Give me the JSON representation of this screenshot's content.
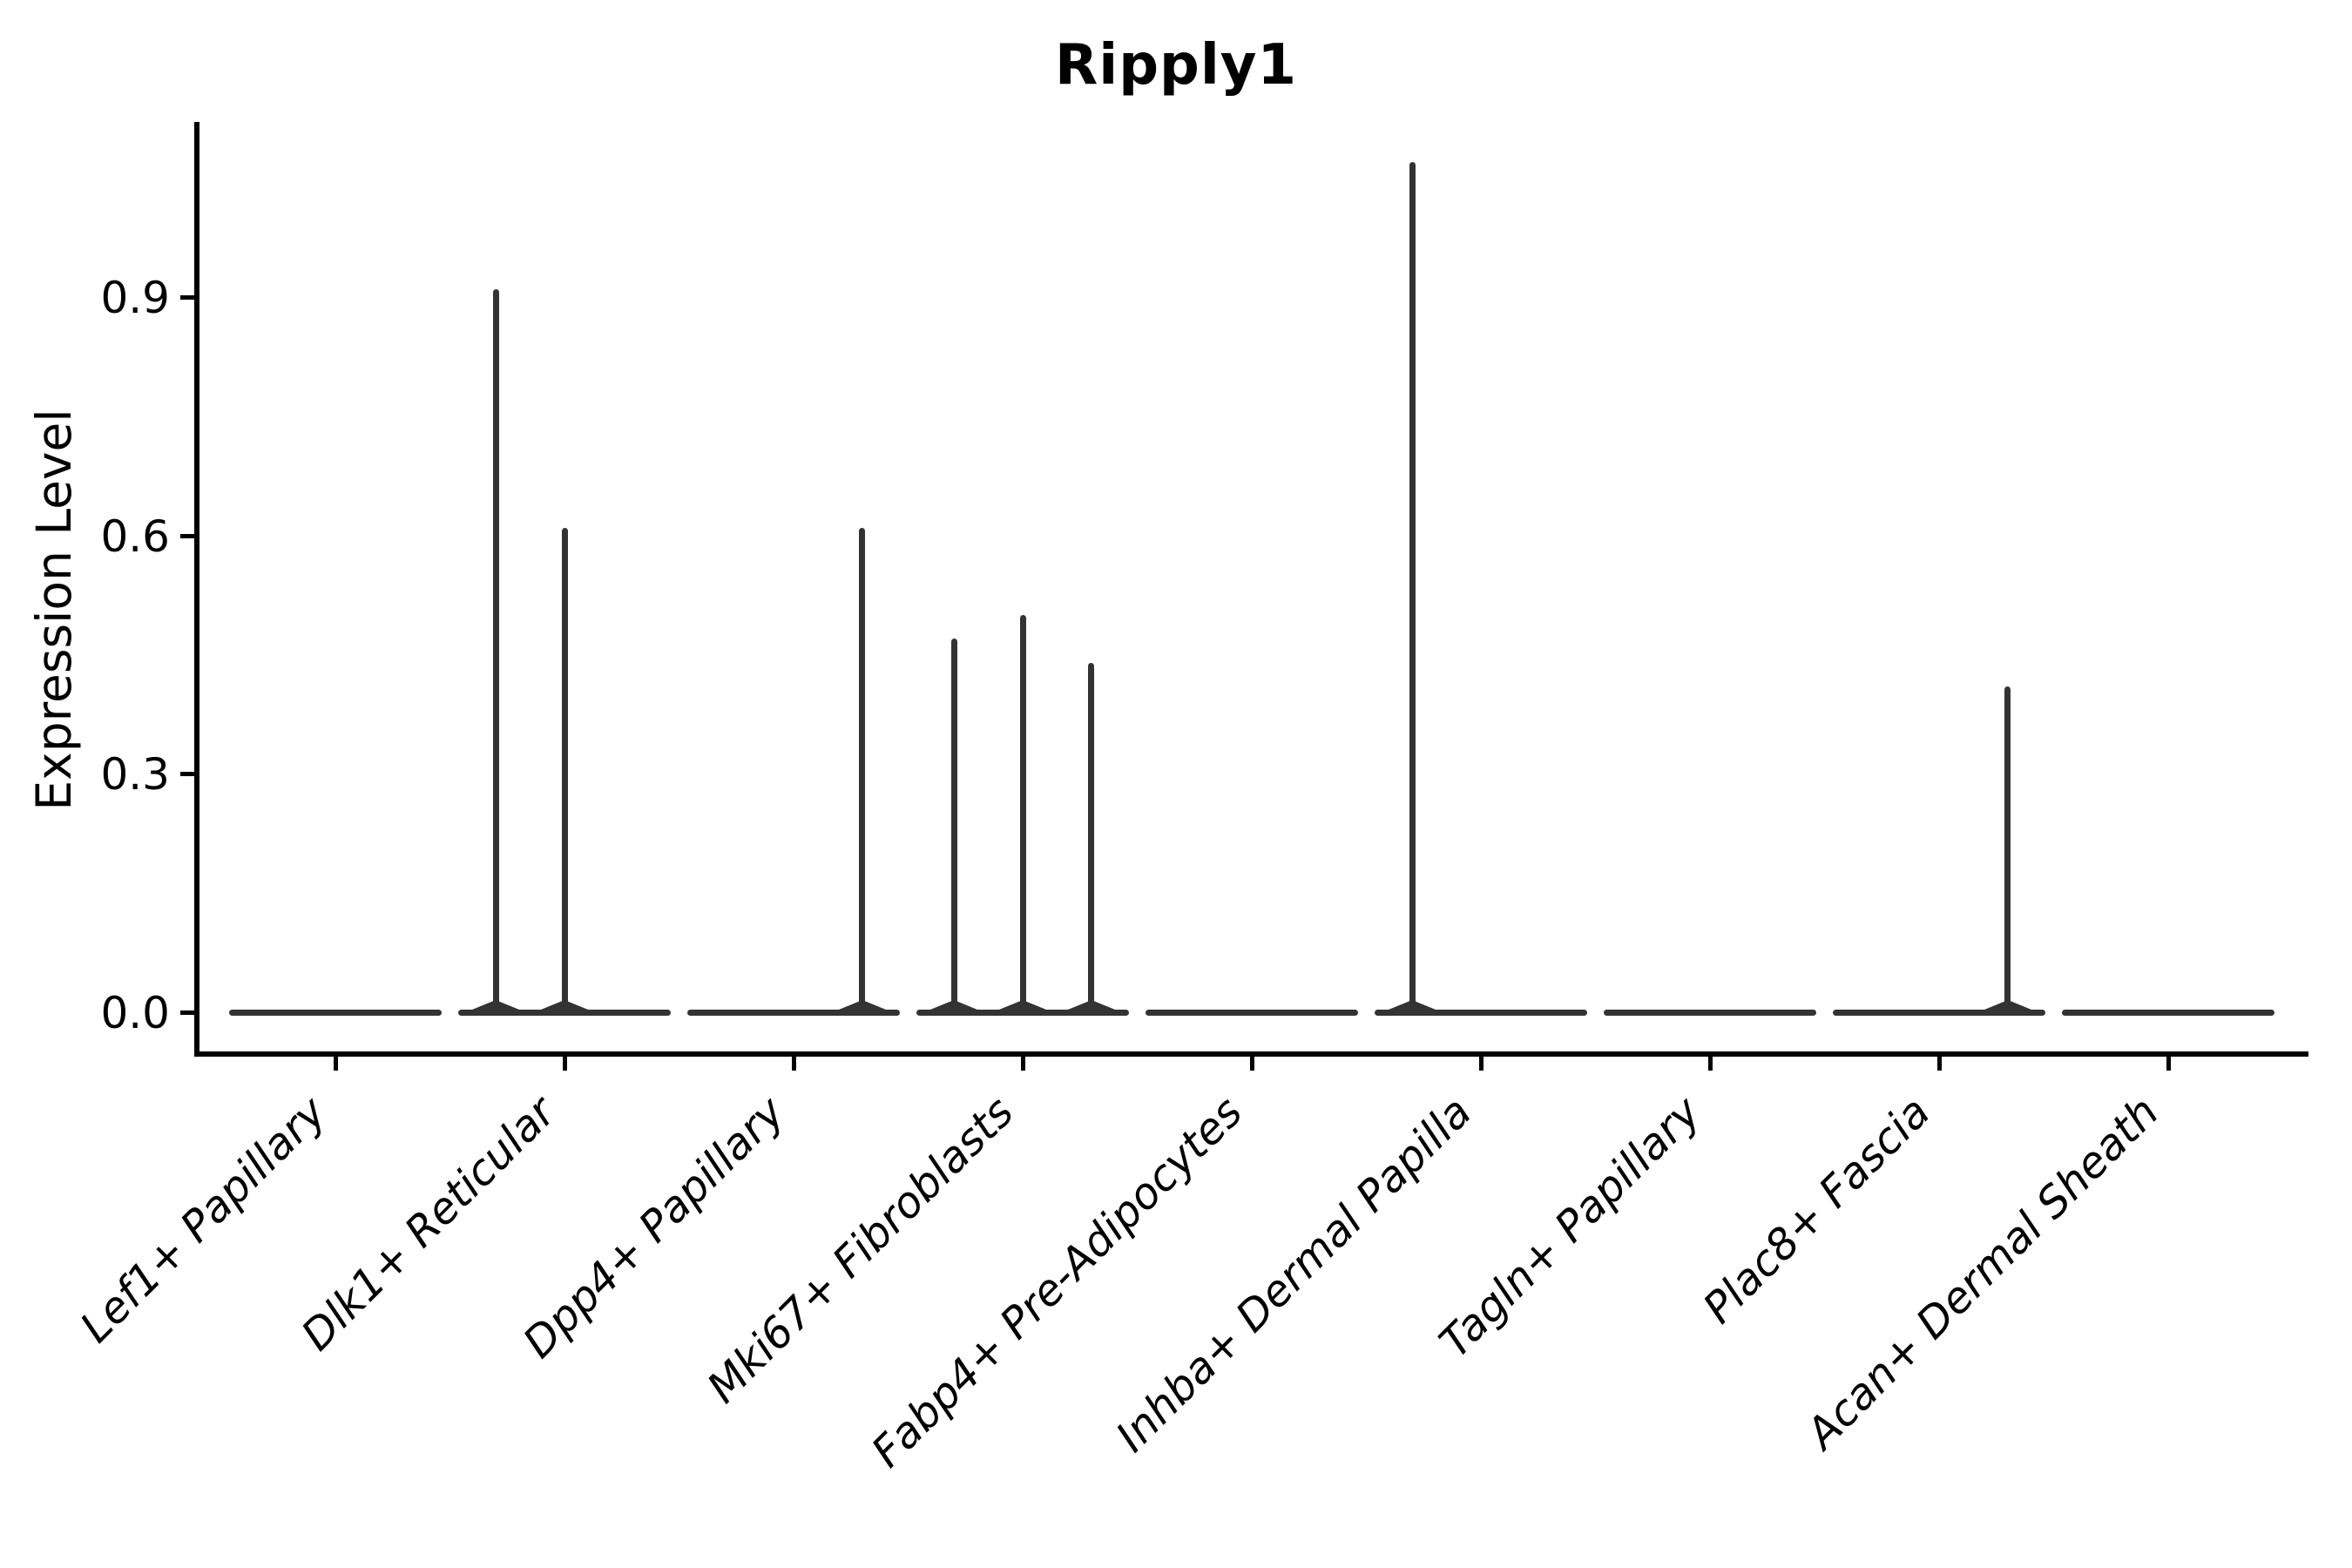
{
  "figure": {
    "background": "#ffffff"
  },
  "chart_data": {
    "type": "violin",
    "title": "Ripply1",
    "xlabel": "",
    "ylabel": "Expression Level",
    "grid": false,
    "legend": "none",
    "ylim": [
      -0.05,
      1.12
    ],
    "yticks": [
      "0.0",
      "0.3",
      "0.6",
      "0.9"
    ],
    "ytick_values": [
      0.0,
      0.3,
      0.6,
      0.9
    ],
    "categories": [
      "Lef1+ Papillary",
      "Dlk1+ Reticular",
      "Dpp4+ Papillary",
      "Mki67+ Fibroblasts",
      "Fabp4+ Pre-Adipocytes",
      "Inhba+ Dermal Papilla",
      "Tagln+ Papillary",
      "Plac8+ Fascia",
      "Acan+ Dermal Sheath"
    ],
    "violins": [
      {
        "category": "Lef1+ Papillary",
        "max_expression": 0.0,
        "spikes": []
      },
      {
        "category": "Dlk1+ Reticular",
        "max_expression": 0.91,
        "spikes": [
          {
            "offset": -0.3,
            "value": 0.91
          },
          {
            "offset": 0.0,
            "value": 0.61
          }
        ]
      },
      {
        "category": "Dpp4+ Papillary",
        "max_expression": 0.61,
        "spikes": [
          {
            "offset": 0.3,
            "value": 0.61
          }
        ]
      },
      {
        "category": "Mki67+ Fibroblasts",
        "max_expression": 0.5,
        "spikes": [
          {
            "offset": -0.3,
            "value": 0.47
          },
          {
            "offset": 0.0,
            "value": 0.5
          },
          {
            "offset": 0.3,
            "value": 0.44
          }
        ]
      },
      {
        "category": "Fabp4+ Pre-Adipocytes",
        "max_expression": 0.0,
        "spikes": []
      },
      {
        "category": "Inhba+ Dermal Papilla",
        "max_expression": 1.07,
        "spikes": [
          {
            "offset": -0.3,
            "value": 1.07
          }
        ]
      },
      {
        "category": "Tagln+ Papillary",
        "max_expression": 0.0,
        "spikes": []
      },
      {
        "category": "Plac8+ Fascia",
        "max_expression": 0.41,
        "spikes": [
          {
            "offset": 0.3,
            "value": 0.41
          }
        ]
      },
      {
        "category": "Acan+ Dermal Sheath",
        "max_expression": 0.0,
        "spikes": []
      }
    ],
    "colors": {
      "violin_line": "#333333",
      "spine": "#000000",
      "text": "#000000"
    }
  }
}
